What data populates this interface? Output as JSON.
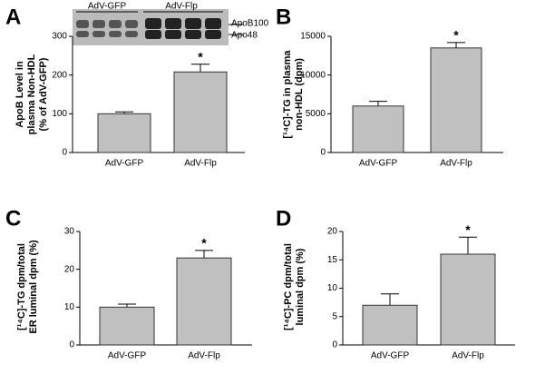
{
  "chart_data": [
    {
      "type": "bar",
      "panel": "A",
      "ylabel": [
        "ApoB Level in",
        "plasma Non-HDL",
        "(% of AdV-GFP)"
      ],
      "categories": [
        "AdV-GFP",
        "AdV-Flp"
      ],
      "values": [
        100,
        208
      ],
      "errors": [
        5,
        20
      ],
      "color": "#c0c0c0",
      "ylim": [
        0,
        300
      ],
      "yticks": [
        0,
        100,
        200,
        300
      ],
      "annotation": "*",
      "blot": {
        "groups": [
          "AdV-GFP",
          "AdV-Flp"
        ],
        "bands": [
          "ApoB100",
          "Apo48"
        ]
      }
    },
    {
      "type": "bar",
      "panel": "B",
      "ylabel": [
        "[¹⁴C]-TG in plasma",
        "non-HDL (dpm)"
      ],
      "categories": [
        "AdV-GFP",
        "AdV-Flp"
      ],
      "values": [
        6000,
        13500
      ],
      "errors": [
        600,
        700
      ],
      "color": "#c0c0c0",
      "ylim": [
        0,
        15000
      ],
      "yticks": [
        0,
        5000,
        10000,
        15000
      ],
      "annotation": "*"
    },
    {
      "type": "bar",
      "panel": "C",
      "ylabel": [
        "[¹⁴C]-TG dpm/total",
        "ER luminal dpm (%)"
      ],
      "categories": [
        "AdV-GFP",
        "AdV-Flp"
      ],
      "values": [
        10,
        23
      ],
      "errors": [
        0.8,
        2
      ],
      "color": "#c0c0c0",
      "ylim": [
        0,
        30
      ],
      "yticks": [
        0,
        10,
        20,
        30
      ],
      "annotation": "*"
    },
    {
      "type": "bar",
      "panel": "D",
      "ylabel": [
        "[¹⁴C]-PC dpm/total",
        "luminal dpm (%)"
      ],
      "categories": [
        "AdV-GFP",
        "AdV-Flp"
      ],
      "values": [
        7,
        16
      ],
      "errors": [
        2,
        3
      ],
      "color": "#c0c0c0",
      "ylim": [
        0,
        20
      ],
      "yticks": [
        0,
        5,
        10,
        15,
        20
      ],
      "annotation": "*"
    }
  ]
}
